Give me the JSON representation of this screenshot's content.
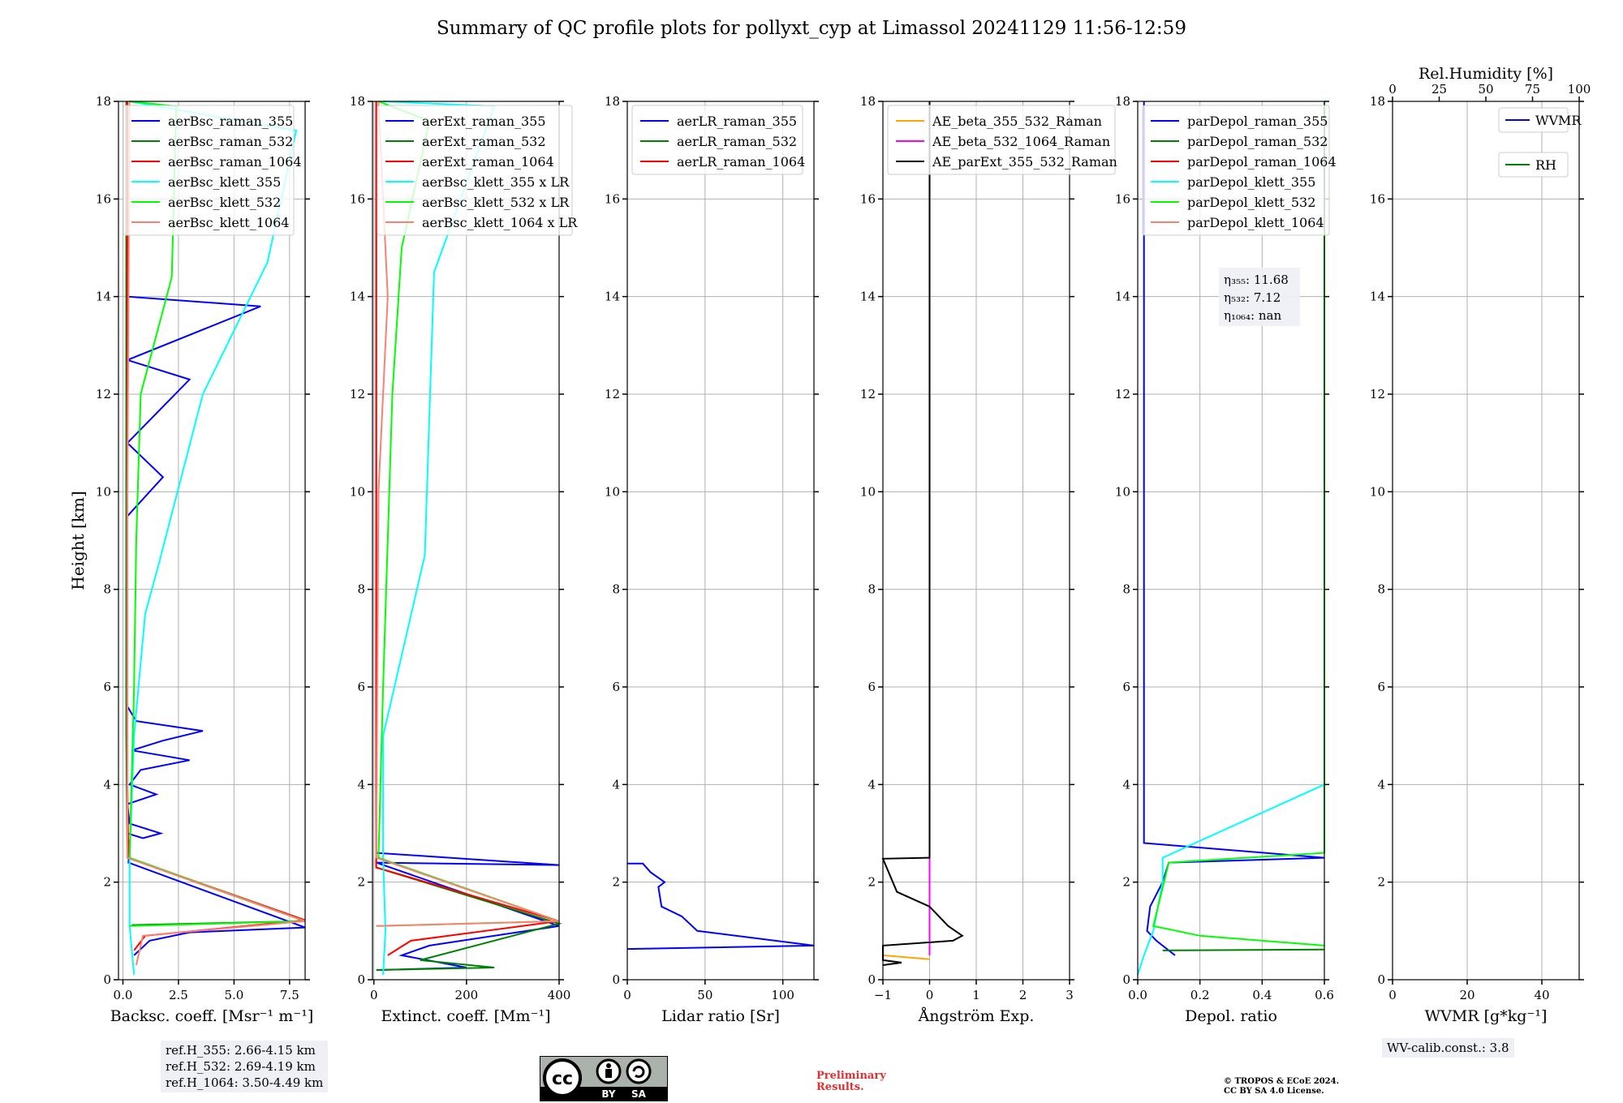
{
  "figure": {
    "title": "Summary of QC profile plots for pollyxt_cyp at Limassol 20241129 11:56-12:59",
    "ylabel": "Height [km]",
    "ref_heights": [
      "ref.H_355: 2.66-4.15 km",
      "ref.H_532: 2.69-4.19 km",
      "ref.H_1064: 3.50-4.49 km"
    ],
    "wv_calib": "WV-calib.const.: 3.8",
    "preliminary": [
      "Preliminary",
      "Results."
    ],
    "copyright": [
      "© TROPOS & ECoE 2024.",
      "CC BY SA 4.0 License."
    ],
    "license_badge": {
      "cc": "cc",
      "by": "BY",
      "sa": "SA"
    },
    "colors": {
      "blue": "#0000ff",
      "green": "#008000",
      "red": "#ff0000",
      "cyan": "#00ffff",
      "lime": "#00ff00",
      "salmon": "#fa8072",
      "orange": "#ffa500",
      "magenta": "#ff00ff",
      "black": "#000000",
      "preliminary": "#e03030"
    }
  },
  "chart_data": [
    {
      "type": "line",
      "xlabel": "Backsc. coeff. [Msr⁻¹ m⁻¹]",
      "ylabel": "Height [km]",
      "xlim": [
        -0.2,
        8.2
      ],
      "ylim": [
        0,
        18
      ],
      "xticks": [
        0,
        2.5,
        5,
        7.5
      ],
      "xticklabels": [
        "0.0",
        "2.5",
        "5.0",
        "7.5"
      ],
      "yticks": [
        0,
        2,
        4,
        6,
        8,
        10,
        12,
        14,
        16,
        18
      ],
      "grid": true,
      "legend": "top-left",
      "series": [
        {
          "name": "aerBsc_raman_355",
          "color": "blue",
          "points": [
            [
              0.5,
              0.5
            ],
            [
              1.2,
              0.8
            ],
            [
              3.0,
              0.97
            ],
            [
              8.2,
              1.07
            ],
            [
              0.25,
              2.4
            ],
            [
              0.3,
              2.7
            ],
            [
              0.2,
              3.0
            ],
            [
              0.9,
              2.9
            ],
            [
              1.7,
              3.0
            ],
            [
              0.3,
              3.2
            ],
            [
              0.2,
              3.6
            ],
            [
              1.5,
              3.8
            ],
            [
              0.3,
              4.0
            ],
            [
              0.8,
              4.3
            ],
            [
              3.0,
              4.5
            ],
            [
              0.4,
              4.7
            ],
            [
              1.8,
              4.9
            ],
            [
              3.6,
              5.1
            ],
            [
              0.6,
              5.3
            ],
            [
              0.2,
              5.6
            ],
            [
              0.2,
              6.4
            ],
            [
              0.2,
              8.2
            ],
            [
              0.2,
              9.5
            ],
            [
              1.8,
              10.3
            ],
            [
              0.2,
              11.0
            ],
            [
              3.0,
              12.3
            ],
            [
              0.2,
              12.7
            ],
            [
              6.2,
              13.8
            ],
            [
              0.2,
              14.0
            ],
            [
              0.2,
              16.5
            ],
            [
              0.2,
              18.0
            ]
          ]
        },
        {
          "name": "aerBsc_raman_532",
          "color": "green",
          "points": [
            [
              0.4,
              1.12
            ],
            [
              8.2,
              1.2
            ],
            [
              0.2,
              2.5
            ],
            [
              0.15,
              5.0
            ],
            [
              0.15,
              10.0
            ],
            [
              0.15,
              15.0
            ],
            [
              0.15,
              18.0
            ]
          ]
        },
        {
          "name": "aerBsc_raman_1064",
          "color": "red",
          "points": [
            [
              0.5,
              0.6
            ],
            [
              1.0,
              0.9
            ],
            [
              8.2,
              1.22
            ],
            [
              0.25,
              2.5
            ],
            [
              0.2,
              4.0
            ],
            [
              0.2,
              12.0
            ],
            [
              0.2,
              18.0
            ]
          ]
        },
        {
          "name": "aerBsc_klett_355",
          "color": "cyan",
          "points": [
            [
              0.5,
              0.1
            ],
            [
              0.4,
              0.6
            ],
            [
              0.3,
              1.1
            ],
            [
              0.3,
              2.5
            ],
            [
              0.5,
              5.0
            ],
            [
              1.0,
              7.5
            ],
            [
              1.6,
              8.5
            ],
            [
              3.6,
              12.0
            ],
            [
              6.5,
              14.7
            ],
            [
              7.8,
              17.4
            ],
            [
              0.3,
              18.0
            ]
          ]
        },
        {
          "name": "aerBsc_klett_532",
          "color": "lime",
          "points": [
            [
              0.3,
              1.1
            ],
            [
              8.2,
              1.2
            ],
            [
              0.3,
              2.5
            ],
            [
              0.5,
              6.0
            ],
            [
              0.6,
              9.0
            ],
            [
              0.8,
              12.0
            ],
            [
              2.2,
              14.4
            ],
            [
              2.4,
              17.9
            ],
            [
              0.3,
              18.0
            ]
          ]
        },
        {
          "name": "aerBsc_klett_1064",
          "color": "salmon",
          "points": [
            [
              0.6,
              0.3
            ],
            [
              0.9,
              0.9
            ],
            [
              8.2,
              1.2
            ],
            [
              0.2,
              2.5
            ],
            [
              0.2,
              10.0
            ],
            [
              0.3,
              18.0
            ]
          ]
        }
      ]
    },
    {
      "type": "line",
      "xlabel": "Extinct. coeff. [Mm⁻¹]",
      "ylabel": "",
      "xlim": [
        -3,
        400
      ],
      "ylim": [
        0,
        18
      ],
      "xticks": [
        0,
        200,
        400
      ],
      "xticklabels": [
        "0",
        "200",
        "400"
      ],
      "yticks": [
        0,
        2,
        4,
        6,
        8,
        10,
        12,
        14,
        16,
        18
      ],
      "grid": true,
      "legend": "top-left",
      "series": [
        {
          "name": "aerExt_raman_355",
          "color": "blue",
          "points": [
            [
              10,
              0.2
            ],
            [
              200,
              0.25
            ],
            [
              60,
              0.5
            ],
            [
              120,
              0.7
            ],
            [
              400,
              1.1
            ],
            [
              5,
              2.4
            ],
            [
              400,
              2.35
            ],
            [
              5,
              2.6
            ],
            [
              5,
              18.0
            ]
          ]
        },
        {
          "name": "aerExt_raman_532",
          "color": "green",
          "points": [
            [
              5,
              0.2
            ],
            [
              260,
              0.25
            ],
            [
              100,
              0.4
            ],
            [
              400,
              1.15
            ],
            [
              5,
              2.3
            ],
            [
              5,
              18.0
            ]
          ]
        },
        {
          "name": "aerExt_raman_1064",
          "color": "red",
          "points": [
            [
              30,
              0.5
            ],
            [
              80,
              0.8
            ],
            [
              400,
              1.2
            ],
            [
              5,
              2.3
            ],
            [
              5,
              18.0
            ]
          ]
        },
        {
          "name": "aerBsc_klett_355 x LR",
          "color": "cyan",
          "points": [
            [
              20,
              0.1
            ],
            [
              25,
              1.0
            ],
            [
              20,
              2.5
            ],
            [
              20,
              5.0
            ],
            [
              110,
              8.7
            ],
            [
              130,
              14.5
            ],
            [
              260,
              17.9
            ],
            [
              20,
              18.0
            ]
          ]
        },
        {
          "name": "aerBsc_klett_532 x LR",
          "color": "lime",
          "points": [
            [
              5,
              1.1
            ],
            [
              400,
              1.2
            ],
            [
              10,
              2.5
            ],
            [
              20,
              6.0
            ],
            [
              40,
              12.0
            ],
            [
              60,
              15.0
            ],
            [
              120,
              17.6
            ],
            [
              10,
              18.0
            ]
          ]
        },
        {
          "name": "aerBsc_klett_1064 x LR",
          "color": "salmon",
          "points": [
            [
              5,
              1.1
            ],
            [
              400,
              1.2
            ],
            [
              5,
              2.5
            ],
            [
              10,
              10.0
            ],
            [
              30,
              14.0
            ],
            [
              10,
              18.0
            ]
          ]
        }
      ]
    },
    {
      "type": "line",
      "xlabel": "Lidar ratio [Sr]",
      "ylabel": "",
      "xlim": [
        0,
        120
      ],
      "ylim": [
        0,
        18
      ],
      "xticks": [
        0,
        50,
        100
      ],
      "xticklabels": [
        "0",
        "50",
        "100"
      ],
      "yticks": [
        0,
        2,
        4,
        6,
        8,
        10,
        12,
        14,
        16,
        18
      ],
      "grid": true,
      "legend": "top-left",
      "series": [
        {
          "name": "aerLR_raman_355",
          "color": "blue",
          "points": [
            [
              0,
              0.63
            ],
            [
              120,
              0.7
            ],
            [
              45,
              1.0
            ],
            [
              35,
              1.3
            ],
            [
              22,
              1.5
            ],
            [
              20,
              1.9
            ],
            [
              24,
              2.0
            ],
            [
              15,
              2.2
            ],
            [
              10,
              2.38
            ],
            [
              0,
              2.38
            ]
          ]
        },
        {
          "name": "aerLR_raman_532",
          "color": "green",
          "points": []
        },
        {
          "name": "aerLR_raman_1064",
          "color": "red",
          "points": []
        }
      ]
    },
    {
      "type": "line",
      "xlabel": "Ångström Exp.",
      "ylabel": "",
      "xlim": [
        -1,
        3
      ],
      "ylim": [
        0,
        18
      ],
      "xticks": [
        -1,
        0,
        1,
        2,
        3
      ],
      "xticklabels": [
        "−1",
        "0",
        "1",
        "2",
        "3"
      ],
      "yticks": [
        0,
        2,
        4,
        6,
        8,
        10,
        12,
        14,
        16,
        18
      ],
      "grid": true,
      "legend": "top-left",
      "series": [
        {
          "name": "AE_beta_355_532_Raman",
          "color": "orange",
          "points": [
            [
              -1,
              0.5
            ],
            [
              0,
              0.42
            ]
          ]
        },
        {
          "name": "AE_beta_532_1064_Raman",
          "color": "magenta",
          "points": [
            [
              0,
              0.5
            ],
            [
              0,
              2.5
            ]
          ]
        },
        {
          "name": "AE_parExt_355_532_Raman",
          "color": "black",
          "points": [
            [
              -1,
              0.3
            ],
            [
              -0.6,
              0.35
            ],
            [
              -1,
              0.4
            ],
            [
              -1,
              0.7
            ],
            [
              0.5,
              0.8
            ],
            [
              0.7,
              0.9
            ],
            [
              0.4,
              1.1
            ],
            [
              0,
              1.5
            ],
            [
              -0.7,
              1.8
            ],
            [
              -1,
              2.48
            ],
            [
              0,
              2.5
            ],
            [
              0,
              18.0
            ]
          ]
        }
      ]
    },
    {
      "type": "line",
      "xlabel": "Depol. ratio",
      "ylabel": "",
      "xlim": [
        0,
        0.6
      ],
      "ylim": [
        0,
        18
      ],
      "xticks": [
        0,
        0.2,
        0.4,
        0.6
      ],
      "xticklabels": [
        "0.0",
        "0.2",
        "0.4",
        "0.6"
      ],
      "yticks": [
        0,
        2,
        4,
        6,
        8,
        10,
        12,
        14,
        16,
        18
      ],
      "grid": true,
      "legend": "top-left",
      "annotation": [
        "η₃₅₅: 11.68",
        "η₅₃₂: 7.12",
        "η₁₀₆₄: nan"
      ],
      "series": [
        {
          "name": "parDepol_raman_355",
          "color": "blue",
          "points": [
            [
              0.12,
              0.5
            ],
            [
              0.06,
              0.8
            ],
            [
              0.03,
              1.0
            ],
            [
              0.04,
              1.5
            ],
            [
              0.08,
              2.0
            ],
            [
              0.1,
              2.4
            ],
            [
              0.6,
              2.5
            ],
            [
              0.02,
              2.8
            ],
            [
              0.02,
              4.0
            ],
            [
              0.02,
              6.0
            ],
            [
              0.02,
              8.0
            ],
            [
              0.02,
              10.0
            ],
            [
              0.02,
              12.0
            ],
            [
              0.02,
              14.0
            ],
            [
              0.02,
              15.0
            ],
            [
              0.02,
              18.0
            ]
          ]
        },
        {
          "name": "parDepol_raman_532",
          "color": "green",
          "points": [
            [
              0.08,
              0.6
            ],
            [
              0.6,
              0.62
            ]
          ]
        },
        {
          "name": "parDepol_raman_1064",
          "color": "red",
          "points": []
        },
        {
          "name": "parDepol_klett_355",
          "color": "cyan",
          "points": [
            [
              0,
              0.1
            ],
            [
              0.02,
              0.5
            ],
            [
              0.05,
              1.0
            ],
            [
              0.08,
              2.0
            ],
            [
              0.08,
              2.5
            ],
            [
              0.6,
              4.0
            ],
            [
              0.6,
              10.0
            ],
            [
              0.6,
              18.0
            ]
          ]
        },
        {
          "name": "parDepol_klett_532",
          "color": "lime",
          "points": [
            [
              0.6,
              0.7
            ],
            [
              0.2,
              0.9
            ],
            [
              0.05,
              1.1
            ],
            [
              0.1,
              2.4
            ],
            [
              0.6,
              2.6
            ],
            [
              0.6,
              18.0
            ]
          ]
        },
        {
          "name": "parDepol_klett_1064",
          "color": "salmon",
          "points": []
        }
      ]
    },
    {
      "type": "line",
      "xlabel": "WVMR [g*kg⁻¹]",
      "ylabel": "",
      "top_xlabel": "Rel.Humidity [%]",
      "top_xticks": [
        0,
        25,
        50,
        75,
        100
      ],
      "xlim": [
        0,
        50
      ],
      "ylim": [
        0,
        18
      ],
      "xticks": [
        0,
        20,
        40
      ],
      "xticklabels": [
        "0",
        "20",
        "40"
      ],
      "yticks": [
        0,
        2,
        4,
        6,
        8,
        10,
        12,
        14,
        16,
        18
      ],
      "grid": true,
      "legend": "top-right",
      "series": [
        {
          "name": "WVMR",
          "color": "blue",
          "points": []
        },
        {
          "name": "RH",
          "color": "green",
          "points": []
        }
      ]
    }
  ]
}
